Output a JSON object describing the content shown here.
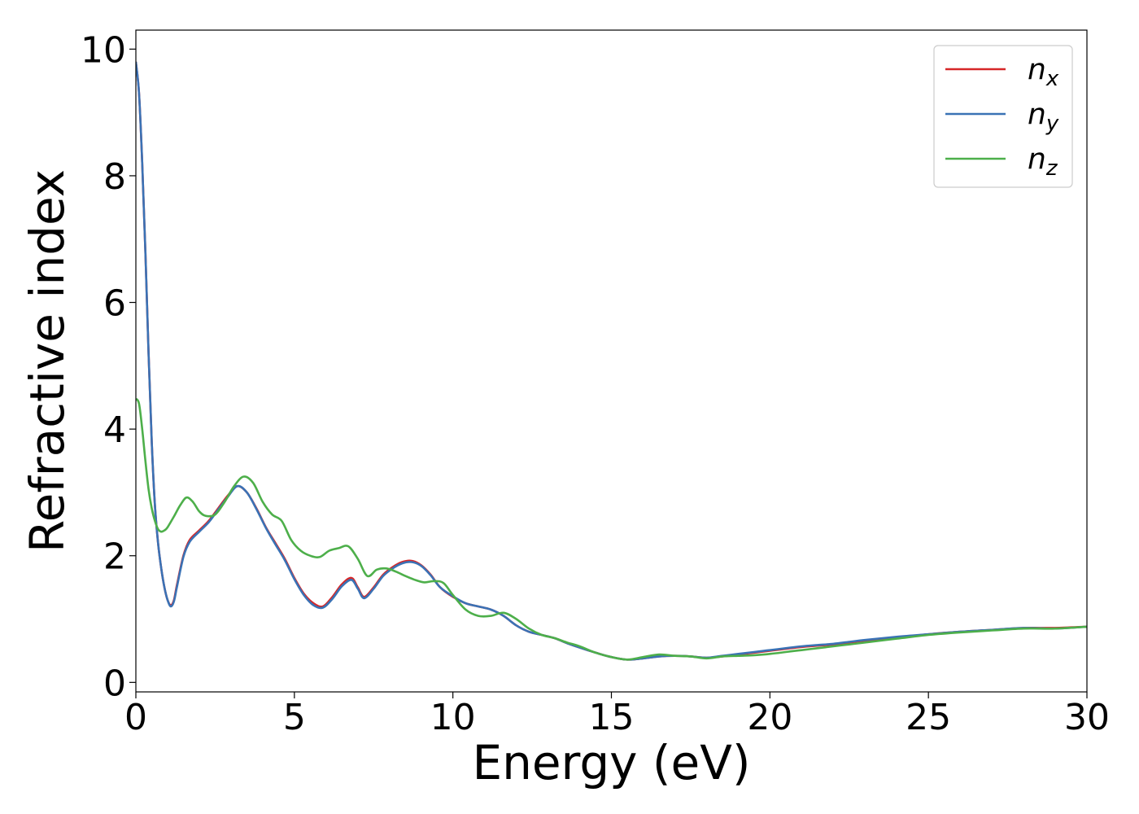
{
  "chart_data": {
    "type": "line",
    "xlabel": "Energy (eV)",
    "ylabel": "Refractive index",
    "xlim": [
      0,
      30
    ],
    "ylim": [
      -0.15,
      10.3
    ],
    "x_ticks": [
      0,
      5,
      10,
      15,
      20,
      25,
      30
    ],
    "y_ticks": [
      0,
      2,
      4,
      6,
      8,
      10
    ],
    "x_tick_labels": [
      "0",
      "5",
      "10",
      "15",
      "20",
      "25",
      "30"
    ],
    "y_tick_labels": [
      "0",
      "2",
      "4",
      "6",
      "8",
      "10"
    ],
    "grid": false,
    "legend_position": "top-right",
    "series": [
      {
        "name": "n",
        "subscript": "x",
        "color": "#d62728",
        "x": [
          0,
          0.1,
          0.2,
          0.3,
          0.4,
          0.5,
          0.6,
          0.7,
          0.8,
          0.9,
          1.0,
          1.1,
          1.2,
          1.3,
          1.5,
          1.7,
          2.0,
          2.3,
          2.6,
          2.9,
          3.2,
          3.5,
          3.8,
          4.1,
          4.4,
          4.7,
          5.0,
          5.3,
          5.6,
          5.9,
          6.2,
          6.5,
          6.8,
          7.0,
          7.2,
          7.5,
          7.8,
          8.1,
          8.4,
          8.7,
          9.0,
          9.3,
          9.6,
          10.0,
          10.4,
          10.8,
          11.2,
          11.6,
          12.0,
          12.4,
          12.8,
          13.2,
          13.6,
          14.0,
          14.5,
          15.0,
          15.5,
          16.0,
          16.5,
          17.0,
          17.5,
          18.0,
          18.5,
          19.0,
          19.5,
          20.0,
          20.5,
          21.0,
          21.5,
          22.0,
          22.5,
          23.0,
          24.0,
          25.0,
          26.0,
          27.0,
          28.0,
          29.0,
          30.0
        ],
        "y": [
          9.8,
          9.3,
          8.2,
          6.8,
          5.2,
          3.8,
          2.8,
          2.2,
          1.8,
          1.5,
          1.3,
          1.22,
          1.3,
          1.55,
          2.0,
          2.25,
          2.4,
          2.55,
          2.75,
          2.95,
          3.1,
          3.0,
          2.75,
          2.45,
          2.2,
          1.95,
          1.65,
          1.4,
          1.25,
          1.2,
          1.35,
          1.55,
          1.65,
          1.5,
          1.35,
          1.5,
          1.7,
          1.82,
          1.9,
          1.92,
          1.85,
          1.7,
          1.5,
          1.35,
          1.25,
          1.2,
          1.15,
          1.05,
          0.9,
          0.8,
          0.75,
          0.7,
          0.62,
          0.55,
          0.47,
          0.4,
          0.36,
          0.38,
          0.41,
          0.42,
          0.41,
          0.39,
          0.41,
          0.44,
          0.47,
          0.5,
          0.53,
          0.56,
          0.58,
          0.6,
          0.63,
          0.66,
          0.71,
          0.76,
          0.8,
          0.83,
          0.86,
          0.86,
          0.88
        ]
      },
      {
        "name": "n",
        "subscript": "y",
        "color": "#3a72b5",
        "x": [
          0,
          0.1,
          0.2,
          0.3,
          0.4,
          0.5,
          0.6,
          0.7,
          0.8,
          0.9,
          1.0,
          1.1,
          1.2,
          1.3,
          1.5,
          1.7,
          2.0,
          2.3,
          2.6,
          2.9,
          3.2,
          3.5,
          3.8,
          4.1,
          4.4,
          4.7,
          5.0,
          5.3,
          5.6,
          5.9,
          6.2,
          6.5,
          6.8,
          7.0,
          7.2,
          7.5,
          7.8,
          8.1,
          8.4,
          8.7,
          9.0,
          9.3,
          9.6,
          10.0,
          10.4,
          10.8,
          11.2,
          11.6,
          12.0,
          12.4,
          12.8,
          13.2,
          13.6,
          14.0,
          14.5,
          15.0,
          15.5,
          16.0,
          16.5,
          17.0,
          17.5,
          18.0,
          18.5,
          19.0,
          19.5,
          20.0,
          20.5,
          21.0,
          21.5,
          22.0,
          22.5,
          23.0,
          24.0,
          25.0,
          26.0,
          27.0,
          28.0,
          29.0,
          30.0
        ],
        "y": [
          9.8,
          9.3,
          8.2,
          6.8,
          5.2,
          3.8,
          2.8,
          2.2,
          1.8,
          1.5,
          1.3,
          1.2,
          1.28,
          1.52,
          1.98,
          2.22,
          2.38,
          2.53,
          2.73,
          2.93,
          3.1,
          3.0,
          2.74,
          2.44,
          2.18,
          1.93,
          1.63,
          1.38,
          1.22,
          1.18,
          1.32,
          1.52,
          1.62,
          1.48,
          1.33,
          1.48,
          1.68,
          1.8,
          1.88,
          1.9,
          1.84,
          1.69,
          1.5,
          1.36,
          1.25,
          1.2,
          1.15,
          1.05,
          0.9,
          0.8,
          0.75,
          0.7,
          0.62,
          0.55,
          0.47,
          0.4,
          0.36,
          0.38,
          0.41,
          0.42,
          0.41,
          0.39,
          0.42,
          0.45,
          0.48,
          0.51,
          0.54,
          0.57,
          0.59,
          0.61,
          0.64,
          0.67,
          0.72,
          0.76,
          0.8,
          0.83,
          0.86,
          0.85,
          0.88
        ]
      },
      {
        "name": "n",
        "subscript": "z",
        "color": "#4daf4a",
        "x": [
          0,
          0.1,
          0.2,
          0.3,
          0.4,
          0.5,
          0.6,
          0.7,
          0.8,
          0.9,
          1.0,
          1.2,
          1.4,
          1.6,
          1.8,
          2.0,
          2.2,
          2.5,
          2.8,
          3.1,
          3.4,
          3.7,
          4.0,
          4.3,
          4.6,
          4.9,
          5.2,
          5.5,
          5.8,
          6.1,
          6.4,
          6.7,
          7.0,
          7.3,
          7.6,
          7.9,
          8.2,
          8.5,
          8.8,
          9.1,
          9.4,
          9.7,
          10.0,
          10.4,
          10.8,
          11.2,
          11.6,
          12.0,
          12.4,
          12.8,
          13.2,
          13.6,
          14.0,
          14.5,
          15.0,
          15.5,
          16.0,
          16.5,
          17.0,
          17.5,
          18.0,
          18.5,
          19.0,
          19.5,
          20.0,
          20.5,
          21.0,
          21.5,
          22.0,
          22.5,
          23.0,
          24.0,
          25.0,
          26.0,
          27.0,
          28.0,
          29.0,
          30.0
        ],
        "y": [
          4.48,
          4.4,
          4.0,
          3.5,
          3.05,
          2.75,
          2.55,
          2.42,
          2.38,
          2.4,
          2.45,
          2.62,
          2.8,
          2.92,
          2.85,
          2.7,
          2.63,
          2.65,
          2.85,
          3.1,
          3.25,
          3.15,
          2.85,
          2.65,
          2.55,
          2.25,
          2.08,
          2.0,
          1.98,
          2.08,
          2.12,
          2.15,
          1.95,
          1.68,
          1.78,
          1.8,
          1.75,
          1.68,
          1.62,
          1.58,
          1.6,
          1.57,
          1.38,
          1.15,
          1.05,
          1.05,
          1.1,
          1.0,
          0.85,
          0.75,
          0.7,
          0.63,
          0.57,
          0.47,
          0.4,
          0.36,
          0.4,
          0.44,
          0.42,
          0.41,
          0.38,
          0.41,
          0.42,
          0.43,
          0.45,
          0.48,
          0.51,
          0.54,
          0.57,
          0.6,
          0.63,
          0.69,
          0.75,
          0.79,
          0.82,
          0.85,
          0.85,
          0.88
        ]
      }
    ]
  }
}
